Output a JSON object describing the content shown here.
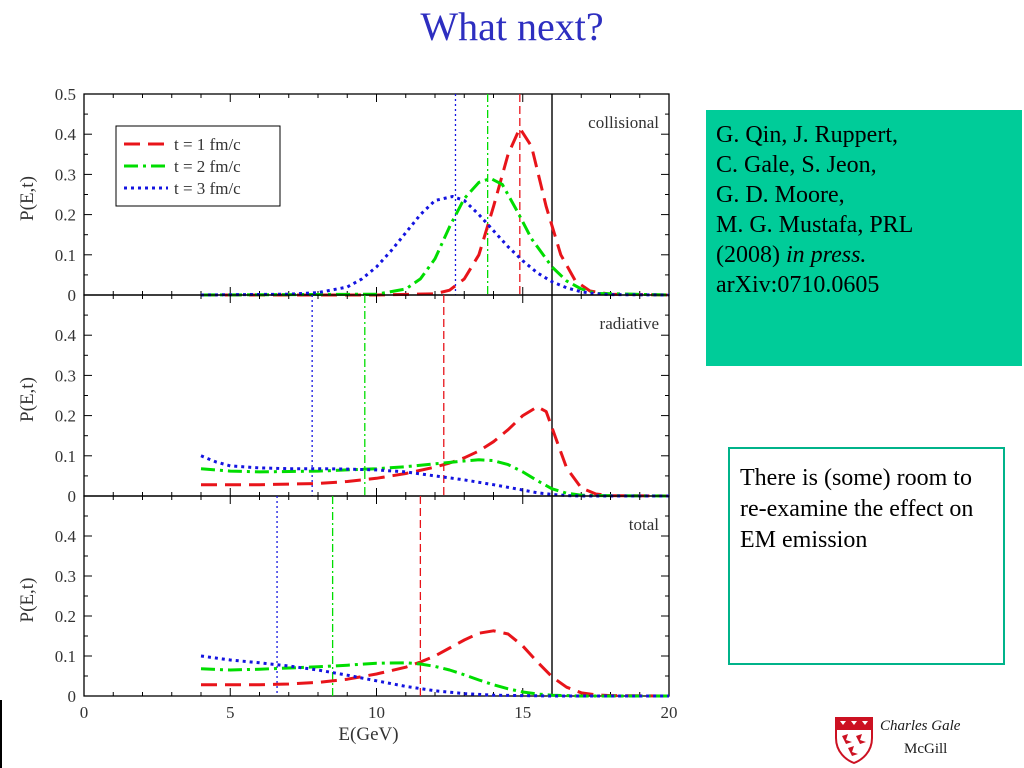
{
  "slide": {
    "title": "What next?",
    "reference": {
      "lines": [
        "G. Qin, J. Ruppert,",
        "C. Gale, S. Jeon,",
        "G. D. Moore,",
        "M. G. Mustafa, PRL"
      ],
      "year": "(2008) ",
      "status": "in press.",
      "arxiv": "arXiv:0710.0605"
    },
    "note": "There is (some) room to re-examine the effect on EM emission",
    "footer": {
      "author": "Charles Gale",
      "institution": "McGill"
    }
  },
  "colors": {
    "title": "#2d2ec0",
    "series": [
      "#e8141a",
      "#00dd00",
      "#1414e0"
    ],
    "box_fill": "#00cc99",
    "box_border": "#00b38a",
    "crest": "#cc1122"
  },
  "chart_data": [
    {
      "type": "line",
      "annotation": "collisional",
      "xlabel": "E(GeV)",
      "ylabel": "P(E,t)",
      "xlim": [
        0,
        20
      ],
      "ylim": [
        0,
        0.5
      ],
      "yticks": [
        "0",
        "0.1",
        "0.2",
        "0.3",
        "0.4",
        "0.5"
      ],
      "legend": {
        "placement": "top-left",
        "entries": [
          "t = 1 fm/c",
          "t = 2 fm/c",
          "t = 3 fm/c"
        ]
      },
      "series": [
        {
          "name": "t = 1 fm/c",
          "style": "dash",
          "x": [
            4,
            10,
            12,
            12.5,
            13,
            13.5,
            14,
            14.5,
            14.9,
            15.3,
            15.8,
            16.3,
            16.8,
            17.3,
            18,
            20
          ],
          "y": [
            0,
            0,
            0.003,
            0.012,
            0.04,
            0.1,
            0.22,
            0.35,
            0.415,
            0.37,
            0.22,
            0.1,
            0.035,
            0.01,
            0.002,
            0
          ]
        },
        {
          "name": "t = 2 fm/c",
          "style": "dashdot",
          "x": [
            4,
            10,
            11,
            11.5,
            12,
            12.5,
            13,
            13.5,
            13.9,
            14.3,
            14.8,
            15.3,
            16,
            16.5,
            17,
            17.5,
            20
          ],
          "y": [
            0,
            0.002,
            0.015,
            0.04,
            0.09,
            0.17,
            0.24,
            0.28,
            0.29,
            0.275,
            0.21,
            0.14,
            0.07,
            0.035,
            0.015,
            0.004,
            0
          ]
        },
        {
          "name": "t = 3 fm/c",
          "style": "dot",
          "x": [
            4,
            7,
            8,
            9,
            9.5,
            10,
            10.5,
            11,
            11.5,
            12,
            12.6,
            13,
            13.5,
            14,
            14.5,
            15,
            15.5,
            16,
            16.5,
            17,
            17.5,
            18,
            20
          ],
          "y": [
            0,
            0.002,
            0.006,
            0.02,
            0.04,
            0.07,
            0.11,
            0.155,
            0.2,
            0.235,
            0.245,
            0.235,
            0.2,
            0.16,
            0.12,
            0.085,
            0.055,
            0.033,
            0.018,
            0.008,
            0.003,
            0.001,
            0
          ]
        }
      ],
      "vlines": [
        {
          "x": 14.9,
          "series": 0
        },
        {
          "x": 13.8,
          "series": 1
        },
        {
          "x": 12.7,
          "series": 2
        },
        {
          "x": 16,
          "series": -1
        }
      ]
    },
    {
      "type": "line",
      "annotation": "radiative",
      "xlabel": "E(GeV)",
      "ylabel": "P(E,t)",
      "xlim": [
        0,
        20
      ],
      "ylim": [
        0,
        0.5
      ],
      "yticks": [
        "0",
        "0.1",
        "0.2",
        "0.3",
        "0.4",
        ""
      ],
      "series": [
        {
          "name": "t = 1 fm/c",
          "style": "dash",
          "x": [
            4,
            6,
            8,
            9,
            10,
            11,
            12,
            12.5,
            13,
            13.5,
            14,
            14.5,
            15,
            15.5,
            15.8,
            16.1,
            16.5,
            17,
            17.5,
            18,
            20
          ],
          "y": [
            0.028,
            0.028,
            0.031,
            0.036,
            0.044,
            0.056,
            0.072,
            0.082,
            0.095,
            0.112,
            0.135,
            0.165,
            0.2,
            0.222,
            0.21,
            0.15,
            0.07,
            0.02,
            0.005,
            0.001,
            0
          ]
        },
        {
          "name": "t = 2 fm/c",
          "style": "dashdot",
          "x": [
            4,
            5,
            6,
            8,
            10,
            11,
            12,
            13,
            13.5,
            14,
            14.5,
            15,
            15.5,
            16,
            16.5,
            17,
            17.5,
            20
          ],
          "y": [
            0.068,
            0.062,
            0.06,
            0.062,
            0.068,
            0.073,
            0.08,
            0.087,
            0.09,
            0.088,
            0.078,
            0.06,
            0.038,
            0.018,
            0.007,
            0.002,
            0.001,
            0
          ]
        },
        {
          "name": "t = 3 fm/c",
          "style": "dot",
          "x": [
            4,
            4.5,
            5,
            6,
            7,
            8,
            9,
            10,
            11,
            12,
            13,
            14,
            15,
            15.5,
            16,
            16.5,
            17,
            20
          ],
          "y": [
            0.1,
            0.085,
            0.075,
            0.07,
            0.068,
            0.068,
            0.067,
            0.065,
            0.06,
            0.05,
            0.04,
            0.028,
            0.015,
            0.008,
            0.004,
            0.001,
            0,
            0
          ]
        }
      ],
      "vlines": [
        {
          "x": 12.3,
          "series": 0
        },
        {
          "x": 9.6,
          "series": 1
        },
        {
          "x": 7.8,
          "series": 2
        },
        {
          "x": 16,
          "series": -1
        }
      ]
    },
    {
      "type": "line",
      "annotation": "total",
      "xlabel": "E(GeV)",
      "ylabel": "P(E,t)",
      "xlim": [
        0,
        20
      ],
      "ylim": [
        0,
        0.5
      ],
      "xticks": [
        "0",
        "5",
        "10",
        "15",
        "20"
      ],
      "yticks": [
        "0",
        "0.1",
        "0.2",
        "0.3",
        "0.4",
        ""
      ],
      "series": [
        {
          "name": "t = 1 fm/c",
          "style": "dash",
          "x": [
            4,
            6,
            7,
            8,
            9,
            10,
            11,
            11.5,
            12,
            12.5,
            13,
            13.5,
            14,
            14.5,
            15,
            15.5,
            16,
            16.5,
            17,
            17.5,
            18,
            20
          ],
          "y": [
            0.028,
            0.028,
            0.03,
            0.034,
            0.042,
            0.055,
            0.072,
            0.085,
            0.1,
            0.12,
            0.14,
            0.157,
            0.163,
            0.155,
            0.125,
            0.085,
            0.048,
            0.022,
            0.008,
            0.003,
            0.001,
            0
          ]
        },
        {
          "name": "t = 2 fm/c",
          "style": "dashdot",
          "x": [
            4,
            5,
            6,
            7,
            8,
            9,
            10,
            11,
            11.5,
            12,
            12.5,
            13,
            13.5,
            14,
            14.5,
            15,
            15.5,
            16,
            17,
            20
          ],
          "y": [
            0.068,
            0.065,
            0.067,
            0.07,
            0.073,
            0.077,
            0.082,
            0.083,
            0.08,
            0.074,
            0.065,
            0.053,
            0.04,
            0.028,
            0.018,
            0.01,
            0.005,
            0.002,
            0,
            0
          ]
        },
        {
          "name": "t = 3 fm/c",
          "style": "dot",
          "x": [
            4,
            5,
            6,
            7,
            8,
            9,
            10,
            11,
            12,
            13,
            14,
            15,
            16,
            17,
            20
          ],
          "y": [
            0.1,
            0.09,
            0.083,
            0.075,
            0.065,
            0.052,
            0.038,
            0.024,
            0.013,
            0.006,
            0.002,
            0.001,
            0,
            0,
            0
          ]
        }
      ],
      "vlines": [
        {
          "x": 11.5,
          "series": 0
        },
        {
          "x": 8.5,
          "series": 1
        },
        {
          "x": 6.6,
          "series": 2
        },
        {
          "x": 16,
          "series": -1
        }
      ]
    }
  ]
}
